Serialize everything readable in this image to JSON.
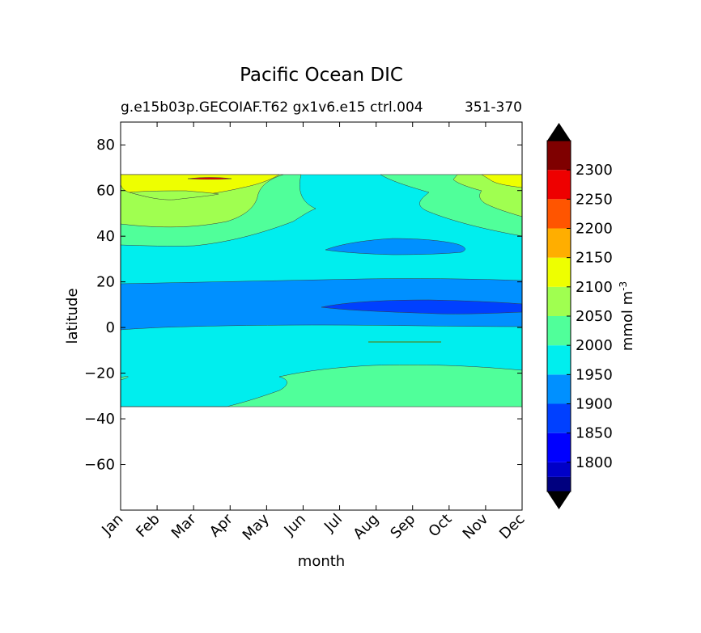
{
  "chart_data": {
    "type": "contourf",
    "title": "Pacific Ocean DIC",
    "subtitle": "g.e15b03p.GECOIAF.T62 gx1v6.e15 ctrl.004",
    "subtitle_right": "351-370",
    "xlabel": "month",
    "ylabel": "latitude",
    "x_ticks": [
      "Jan",
      "Feb",
      "Mar",
      "Apr",
      "May",
      "Jun",
      "Jul",
      "Aug",
      "Sep",
      "Oct",
      "Nov",
      "Dec"
    ],
    "xlim": [
      0,
      11
    ],
    "ylim": [
      -80,
      90
    ],
    "y_ticks": [
      80,
      60,
      40,
      20,
      0,
      -20,
      -40,
      -60
    ],
    "data_lat_range": [
      -34,
      67
    ],
    "colorbar": {
      "label": "mmol m",
      "label_superscript": "-3",
      "levels": [
        1750,
        1775,
        1800,
        1850,
        1900,
        1950,
        2000,
        2050,
        2100,
        2150,
        2200,
        2250,
        2300,
        2350
      ],
      "tick_values": [
        1800,
        1850,
        1900,
        1950,
        2000,
        2050,
        2100,
        2150,
        2200,
        2250,
        2300
      ],
      "colors": [
        "#00007f",
        "#0000c8",
        "#0000ff",
        "#0040ff",
        "#0090ff",
        "#00eeee",
        "#50ff9a",
        "#a0ff50",
        "#eeff00",
        "#ffae00",
        "#ff5500",
        "#ee0000",
        "#7f0000"
      ],
      "extend_low_color": "#000000",
      "extend_high_color": "#000000"
    },
    "grid": false,
    "legend": "colorbar-right"
  }
}
